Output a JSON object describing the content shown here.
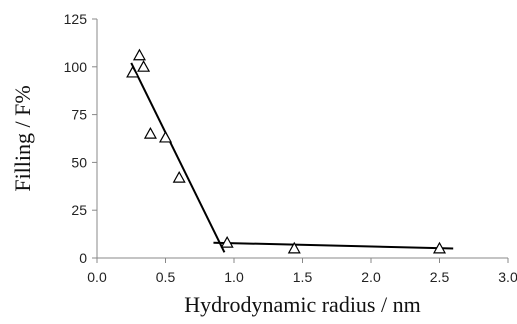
{
  "chart_data": {
    "type": "scatter",
    "title": "",
    "xlabel": "Hydrodynamic radius / nm",
    "ylabel": "Filling / F%",
    "xlim": [
      0.0,
      3.0
    ],
    "ylim": [
      0,
      125
    ],
    "x_ticks": [
      "0.0",
      "0.5",
      "1.0",
      "1.5",
      "2.0",
      "2.5",
      "3.0"
    ],
    "y_ticks": [
      "0",
      "25",
      "50",
      "75",
      "100",
      "125"
    ],
    "grid": false,
    "legend": "none",
    "marker": "open-triangle",
    "points": [
      {
        "x": 0.26,
        "y": 97
      },
      {
        "x": 0.31,
        "y": 106
      },
      {
        "x": 0.34,
        "y": 100
      },
      {
        "x": 0.39,
        "y": 65
      },
      {
        "x": 0.5,
        "y": 63
      },
      {
        "x": 0.6,
        "y": 42
      },
      {
        "x": 0.95,
        "y": 8
      },
      {
        "x": 1.44,
        "y": 5
      },
      {
        "x": 2.5,
        "y": 5
      }
    ],
    "trend_lines": [
      {
        "x": [
          0.25,
          0.93
        ],
        "y": [
          102,
          3
        ]
      },
      {
        "x": [
          0.85,
          2.6
        ],
        "y": [
          8,
          5
        ]
      }
    ],
    "color": "#000000"
  }
}
